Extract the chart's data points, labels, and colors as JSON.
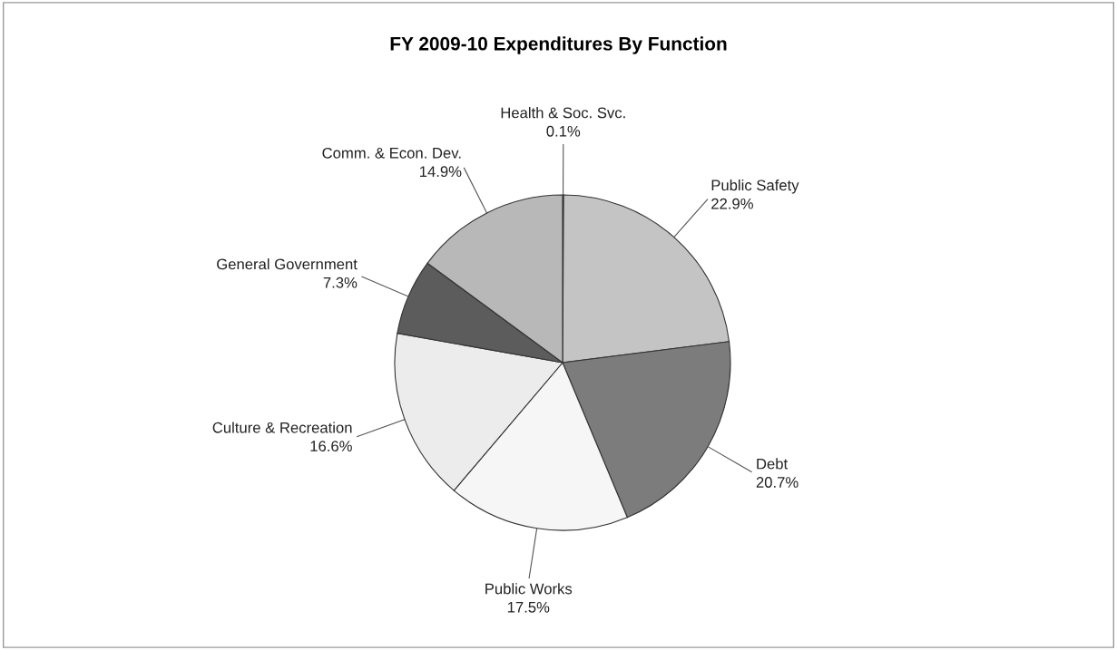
{
  "chart_data": {
    "type": "pie",
    "title": "FY 2009-10 Expenditures By Function",
    "categories": [
      "Health & Soc. Svc.",
      "Public Safety",
      "Debt",
      "Public Works",
      "Culture & Recreation",
      "General Government",
      "Comm. & Econ. Dev."
    ],
    "values": [
      0.1,
      22.9,
      20.7,
      17.5,
      16.6,
      7.3,
      14.9
    ],
    "colors": [
      "#d0d0d0",
      "#c4c4c4",
      "#7c7c7c",
      "#f6f6f6",
      "#ececec",
      "#5c5c5c",
      "#b8b8b8"
    ],
    "value_labels": [
      "0.1%",
      "22.9%",
      "20.7%",
      "17.5%",
      "16.6%",
      "7.3%",
      "14.9%"
    ],
    "legend": false
  }
}
